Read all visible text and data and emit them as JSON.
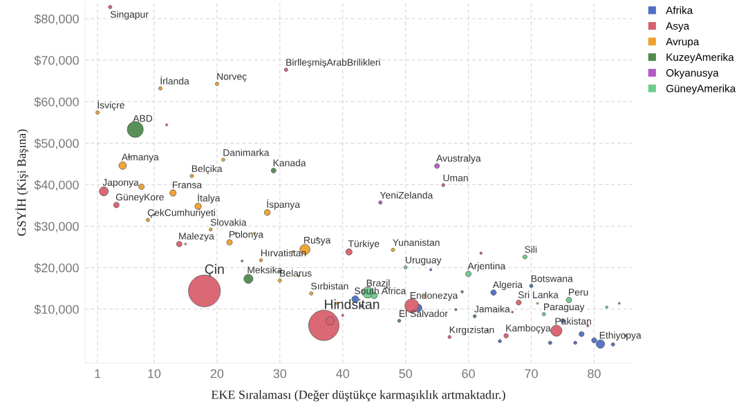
{
  "chart_data": {
    "type": "bubble",
    "xlabel": "EKE Sıralaması (Değer düştükçe karmaşıklık artmaktadır.)",
    "ylabel": "GSYİH (Kişi Başına)",
    "xlim": [
      -1,
      86
    ],
    "xticks": [
      1,
      10,
      20,
      30,
      40,
      50,
      60,
      70,
      80
    ],
    "ylim": [
      -3000,
      84000
    ],
    "yticks": [
      {
        "value": 10000,
        "label": "$10,000"
      },
      {
        "value": 20000,
        "label": "$20,000"
      },
      {
        "value": 30000,
        "label": "$30,000"
      },
      {
        "value": 40000,
        "label": "$40,000"
      },
      {
        "value": 50000,
        "label": "$50,000"
      },
      {
        "value": 60000,
        "label": "$60,000"
      },
      {
        "value": 70000,
        "label": "$70,000"
      },
      {
        "value": 80000,
        "label": "$80,000"
      }
    ],
    "grid": true,
    "legend": "top right",
    "marker": "circle",
    "series": [
      {
        "name": "Afrika",
        "color": "#4e6fc4",
        "x": [
          54,
          42,
          43,
          52,
          58,
          64,
          70,
          75,
          65,
          73,
          77,
          78,
          80,
          81,
          83,
          85
        ],
        "values": [
          19500,
          12400,
          10800,
          10300,
          9900,
          14000,
          15600,
          7200,
          2300,
          1900,
          1900,
          4000,
          2500,
          1600,
          1500,
          3600
        ],
        "sizes": [
          0.005,
          0.047,
          0.008,
          0.057,
          0.005,
          0.03,
          0.012,
          0.017,
          0.01,
          0.012,
          0.01,
          0.025,
          0.025,
          0.07,
          0.012,
          0.005
        ]
      },
      {
        "name": "Asya",
        "color": "#d9606e",
        "x": [
          3,
          31,
          12,
          2,
          4,
          10,
          14,
          18,
          37,
          38,
          40,
          41,
          56,
          51,
          62,
          57,
          68,
          67,
          66,
          74,
          79,
          84
        ],
        "values": [
          82800,
          67700,
          54400,
          38400,
          35100,
          32800,
          25700,
          14400,
          6100,
          7200,
          8500,
          23800,
          39900,
          10800,
          23500,
          3300,
          11600,
          9300,
          3600,
          4800,
          6000,
          11400
        ],
        "sizes": [
          0.012,
          0.012,
          0.005,
          0.08,
          0.03,
          0.004,
          0.03,
          1,
          0.91,
          0.07,
          0.005,
          0.04,
          0.01,
          0.19,
          0.006,
          0.01,
          0.025,
          0.004,
          0.02,
          0.12,
          0.005,
          0.004
        ]
      },
      {
        "name": "Avrupa",
        "color": "#f0a02a",
        "x": [
          1,
          11,
          20,
          6,
          5,
          21,
          16,
          8,
          13,
          17,
          28,
          9,
          19,
          15,
          22,
          23,
          26,
          27,
          30,
          32,
          34,
          36,
          33,
          48,
          35,
          39,
          53,
          63,
          71
        ],
        "values": [
          57400,
          63200,
          64300,
          46700,
          44600,
          46000,
          42100,
          39500,
          38000,
          34800,
          33300,
          31500,
          29200,
          25700,
          26100,
          28300,
          28300,
          21800,
          16900,
          23800,
          24400,
          27100,
          18000,
          24300,
          13800,
          11400,
          13200,
          4900,
          11400
        ],
        "sizes": [
          0.012,
          0.012,
          0.012,
          0.004,
          0.057,
          0.01,
          0.012,
          0.03,
          0.04,
          0.04,
          0.035,
          0.012,
          0.01,
          0.004,
          0.03,
          0.004,
          0.004,
          0.01,
          0.012,
          0.004,
          0.1,
          0.004,
          0.004,
          0.012,
          0.012,
          0.004,
          0.004,
          0.004,
          0.004
        ]
      },
      {
        "name": "KuzeyAmerika",
        "color": "#4f8a4f",
        "x": [
          7,
          29,
          24,
          25,
          30,
          47,
          49,
          59,
          61
        ],
        "values": [
          53300,
          43400,
          21600,
          17300,
          19100,
          15200,
          7200,
          14200,
          8300
        ],
        "sizes": [
          0.25,
          0.023,
          0.004,
          0.08,
          0.004,
          0.004,
          0.01,
          0.006,
          0.01
        ]
      },
      {
        "name": "Okyanusya",
        "color": "#b259c6",
        "x": [
          55,
          46
        ],
        "values": [
          44500,
          35700
        ],
        "sizes": [
          0.023,
          0.012
        ]
      },
      {
        "name": "GüneyAmerika",
        "color": "#6ccb8b",
        "x": [
          44,
          45,
          50,
          60,
          69,
          76,
          72,
          82
        ],
        "values": [
          14000,
          13300,
          20100,
          18500,
          22600,
          12200,
          8800,
          10500
        ],
        "sizes": [
          0.12,
          0.04,
          0.01,
          0.03,
          0.017,
          0.03,
          0.012,
          0.006
        ]
      }
    ],
    "annotations": [
      {
        "text": "Singapur",
        "x": 3,
        "y": 82800
      },
      {
        "text": "BirlleşmişArabBrilikleri",
        "x": 31,
        "y": 67700
      },
      {
        "text": "İrlanda",
        "x": 11,
        "y": 63200
      },
      {
        "text": "Norveç",
        "x": 20,
        "y": 64300
      },
      {
        "text": "İsviçre",
        "x": 1,
        "y": 57400
      },
      {
        "text": "ABD",
        "x": 7,
        "y": 53300
      },
      {
        "text": "Danimarka",
        "x": 21,
        "y": 46000
      },
      {
        "text": "Almanya",
        "x": 5,
        "y": 44600
      },
      {
        "text": "Kanada",
        "x": 29,
        "y": 43400
      },
      {
        "text": "Belçika",
        "x": 16,
        "y": 42100
      },
      {
        "text": "Japonya",
        "x": 2,
        "y": 38400
      },
      {
        "text": "Fransa",
        "x": 13,
        "y": 38000
      },
      {
        "text": "Avustralya",
        "x": 55,
        "y": 44500
      },
      {
        "text": "Uman",
        "x": 56,
        "y": 39900
      },
      {
        "text": "GüneyKore",
        "x": 4,
        "y": 35100
      },
      {
        "text": "İtalya",
        "x": 17,
        "y": 34800
      },
      {
        "text": "YeniZelanda",
        "x": 46,
        "y": 35700
      },
      {
        "text": "İspanya",
        "x": 28,
        "y": 33300
      },
      {
        "text": "ÇekCumhuriyeti",
        "x": 9,
        "y": 31500
      },
      {
        "text": "Slovakia",
        "x": 19,
        "y": 29200
      },
      {
        "text": "Malezya",
        "x": 14,
        "y": 25700
      },
      {
        "text": "Polonya",
        "x": 22,
        "y": 26100
      },
      {
        "text": "Rusya",
        "x": 34,
        "y": 24400
      },
      {
        "text": "Türkiye",
        "x": 41,
        "y": 23800
      },
      {
        "text": "Yunanistan",
        "x": 48,
        "y": 24300
      },
      {
        "text": "Hırvatistan",
        "x": 27,
        "y": 21800
      },
      {
        "text": "Uruguay",
        "x": 50,
        "y": 20100
      },
      {
        "text": "Sili",
        "x": 69,
        "y": 22600
      },
      {
        "text": "Arjentina",
        "x": 60,
        "y": 18500
      },
      {
        "text": "Çin",
        "x": 18,
        "y": 14400
      },
      {
        "text": "Meksika",
        "x": 25,
        "y": 17300
      },
      {
        "text": "Belarus",
        "x": 30,
        "y": 16900
      },
      {
        "text": "Brazil",
        "x": 44,
        "y": 14000
      },
      {
        "text": "Botswana",
        "x": 70,
        "y": 15600
      },
      {
        "text": "Sırbistan",
        "x": 35,
        "y": 13800
      },
      {
        "text": "South Africa",
        "x": 42,
        "y": 12400
      },
      {
        "text": "Algeria",
        "x": 64,
        "y": 14000
      },
      {
        "text": "Endonezya",
        "x": 51,
        "y": 10800
      },
      {
        "text": "Sri Lanka",
        "x": 68,
        "y": 11600
      },
      {
        "text": "Peru",
        "x": 76,
        "y": 12200
      },
      {
        "text": "Hindsitan",
        "x": 37,
        "y": 6100
      },
      {
        "text": "El Salvador",
        "x": 49,
        "y": 7200
      },
      {
        "text": "Jamaika",
        "x": 61,
        "y": 8300
      },
      {
        "text": "Paraguay",
        "x": 72,
        "y": 8800
      },
      {
        "text": "Pakistan",
        "x": 74,
        "y": 4800
      },
      {
        "text": "Kırgızistan",
        "x": 57,
        "y": 3300
      },
      {
        "text": "Kamboçya",
        "x": 66,
        "y": 3600
      },
      {
        "text": "Ethiyopya",
        "x": 81,
        "y": 1600
      }
    ]
  }
}
